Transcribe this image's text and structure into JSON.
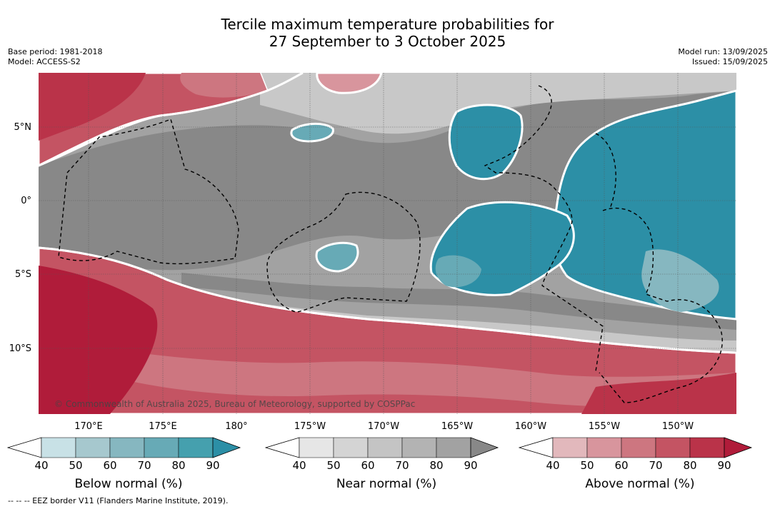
{
  "title": {
    "line1": "Tercile maximum temperature probabilities for",
    "line2": "27 September to 3 October 2025"
  },
  "meta": {
    "base_period": "Base period: 1981-2018",
    "model": "Model: ACCESS-S2",
    "model_run": "Model run: 13/09/2025",
    "issued": "Issued: 15/09/2025"
  },
  "map": {
    "lat_labels": [
      "5°N",
      "0°",
      "5°S",
      "10°S"
    ],
    "lon_labels": [
      "170°E",
      "175°E",
      "180°",
      "175°W",
      "170°W",
      "165°W",
      "160°W",
      "155°W",
      "150°W"
    ],
    "copyright": "© Commonwealth of Australia 2025, Bureau of Meteorology, supported by COSPPac",
    "border_style": "dashed-black"
  },
  "colorbars": [
    {
      "title": "Below normal (%)",
      "ticks": [
        "40",
        "50",
        "60",
        "70",
        "80",
        "90"
      ],
      "colors": [
        "#ffffff",
        "#c8e1e6",
        "#a6c8ce",
        "#86b7c0",
        "#67aab6",
        "#45a0ae",
        "#2c8fa6"
      ]
    },
    {
      "title": "Near normal (%)",
      "ticks": [
        "40",
        "50",
        "60",
        "70",
        "80",
        "90"
      ],
      "colors": [
        "#ffffff",
        "#e6e6e6",
        "#d4d4d4",
        "#c4c4c4",
        "#b3b3b3",
        "#a2a2a2",
        "#888888"
      ]
    },
    {
      "title": "Above normal (%)",
      "ticks": [
        "40",
        "50",
        "60",
        "70",
        "80",
        "90"
      ],
      "colors": [
        "#ffffff",
        "#e2b8bc",
        "#d8959d",
        "#cd7680",
        "#c45463",
        "#ba3349",
        "#b01c3a"
      ]
    }
  ],
  "footnote": "--  --  -- EEZ border V11 (Flanders Marine Institute, 2019)."
}
